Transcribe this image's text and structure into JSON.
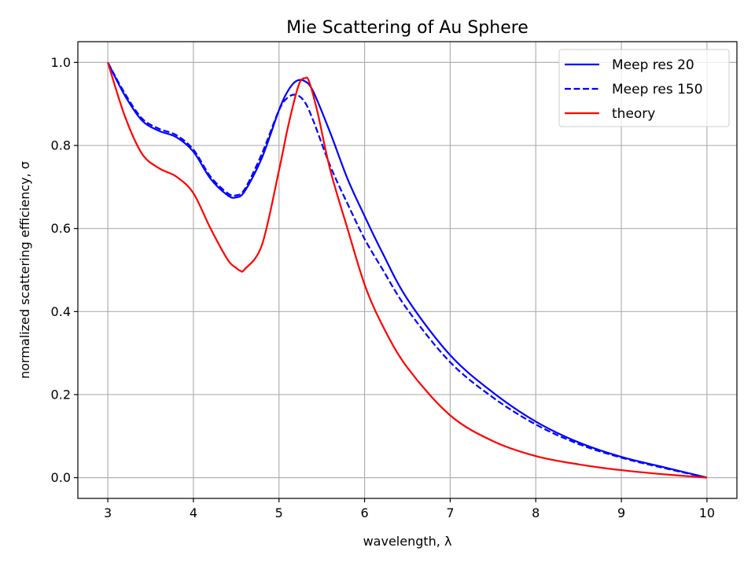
{
  "chart_data": {
    "type": "line",
    "title": "Mie Scattering of Au Sphere",
    "xlabel": "wavelength, λ",
    "ylabel": "normalized scattering efficiency, σ",
    "xlim": [
      2.65,
      10.35
    ],
    "ylim": [
      -0.05,
      1.05
    ],
    "xticks": [
      3,
      4,
      5,
      6,
      7,
      8,
      9,
      10
    ],
    "yticks": [
      0.0,
      0.2,
      0.4,
      0.6,
      0.8,
      1.0
    ],
    "xtick_labels": [
      "3",
      "4",
      "5",
      "6",
      "7",
      "8",
      "9",
      "10"
    ],
    "ytick_labels": [
      "0.0",
      "0.2",
      "0.4",
      "0.6",
      "0.8",
      "1.0"
    ],
    "grid": true,
    "legend_position": "top-right",
    "series": [
      {
        "name": "Meep res 20",
        "color": "#0000ff",
        "style": "solid",
        "x": [
          3.0,
          3.2,
          3.4,
          3.6,
          3.8,
          4.0,
          4.2,
          4.4,
          4.5,
          4.6,
          4.8,
          5.0,
          5.1,
          5.2,
          5.3,
          5.4,
          5.6,
          5.8,
          6.0,
          6.2,
          6.5,
          7.0,
          7.5,
          8.0,
          8.5,
          9.0,
          9.5,
          10.0
        ],
        "y": [
          1.0,
          0.92,
          0.86,
          0.835,
          0.82,
          0.785,
          0.72,
          0.68,
          0.675,
          0.69,
          0.77,
          0.885,
          0.93,
          0.955,
          0.955,
          0.93,
          0.83,
          0.72,
          0.63,
          0.545,
          0.43,
          0.295,
          0.205,
          0.135,
          0.085,
          0.05,
          0.025,
          0.0
        ]
      },
      {
        "name": "Meep res 150",
        "color": "#0000ff",
        "style": "dashed",
        "x": [
          3.0,
          3.2,
          3.4,
          3.6,
          3.8,
          4.0,
          4.2,
          4.4,
          4.5,
          4.6,
          4.8,
          5.0,
          5.1,
          5.2,
          5.3,
          5.4,
          5.6,
          5.8,
          6.0,
          6.2,
          6.5,
          7.0,
          7.5,
          8.0,
          8.5,
          9.0,
          9.5,
          10.0
        ],
        "y": [
          1.0,
          0.925,
          0.865,
          0.84,
          0.825,
          0.79,
          0.725,
          0.685,
          0.68,
          0.695,
          0.78,
          0.885,
          0.915,
          0.922,
          0.905,
          0.86,
          0.75,
          0.66,
          0.575,
          0.505,
          0.405,
          0.278,
          0.193,
          0.128,
          0.081,
          0.048,
          0.023,
          0.0
        ]
      },
      {
        "name": "theory",
        "color": "#ff0000",
        "style": "solid",
        "x": [
          3.0,
          3.2,
          3.4,
          3.6,
          3.8,
          4.0,
          4.2,
          4.4,
          4.5,
          4.55,
          4.6,
          4.8,
          5.0,
          5.1,
          5.2,
          5.25,
          5.3,
          5.35,
          5.45,
          5.6,
          5.8,
          6.0,
          6.2,
          6.5,
          7.0,
          7.5,
          8.0,
          8.5,
          9.0,
          9.5,
          10.0
        ],
        "y": [
          1.0,
          0.87,
          0.78,
          0.745,
          0.725,
          0.685,
          0.6,
          0.525,
          0.505,
          0.498,
          0.502,
          0.56,
          0.74,
          0.84,
          0.925,
          0.955,
          0.962,
          0.955,
          0.88,
          0.74,
          0.6,
          0.465,
          0.37,
          0.265,
          0.15,
          0.088,
          0.052,
          0.032,
          0.018,
          0.008,
          0.0
        ]
      }
    ]
  }
}
